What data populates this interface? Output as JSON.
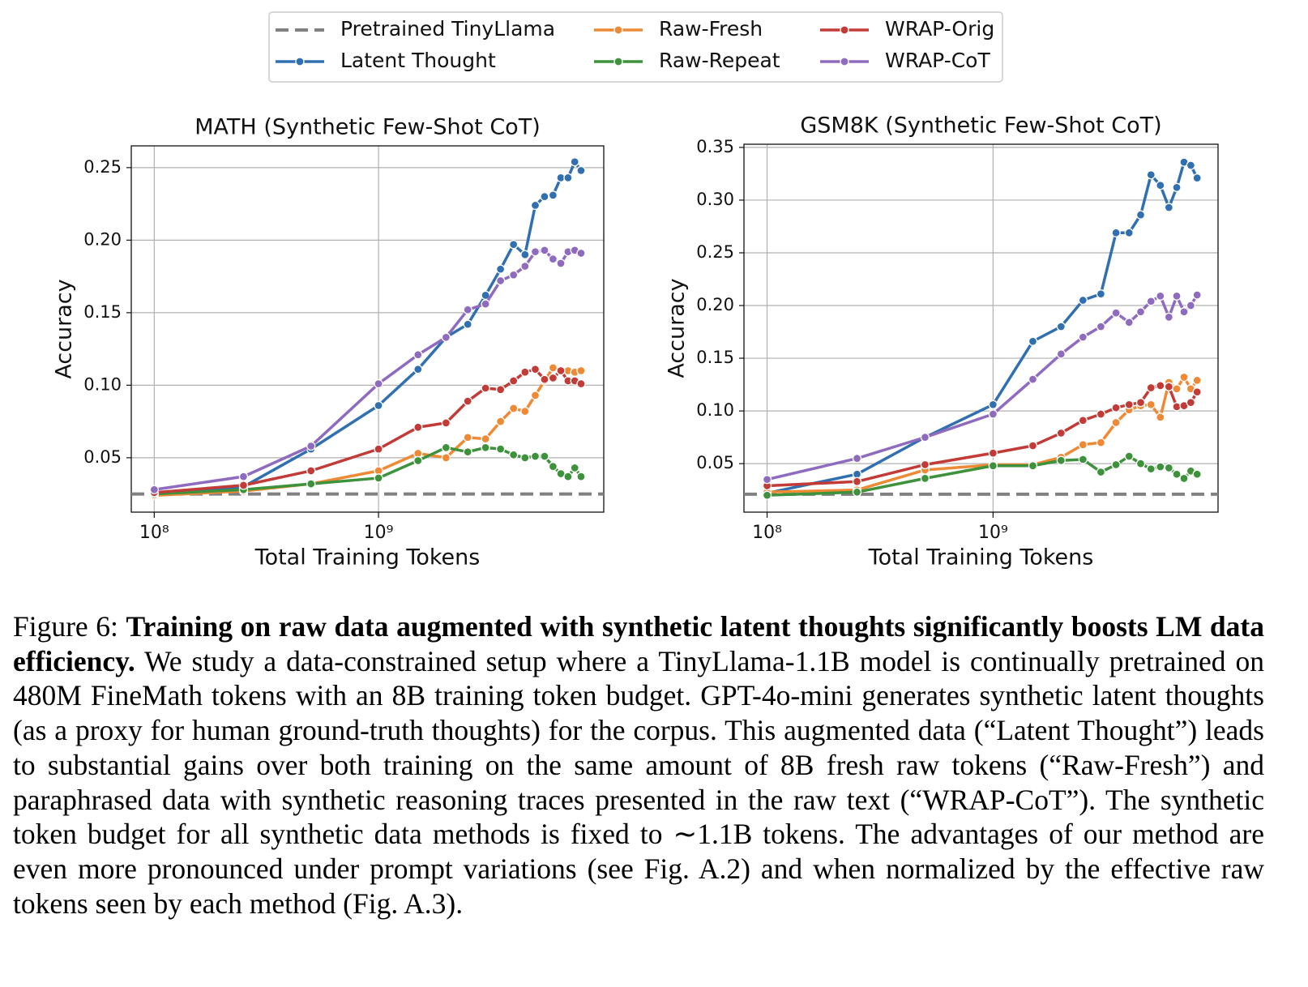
{
  "chart_data": [
    {
      "type": "line",
      "title": "MATH (Synthetic Few-Shot CoT)",
      "x_label": "Total Training Tokens",
      "y_label": "Accuracy",
      "xscale": "log",
      "grid": true,
      "x": [
        100000000,
        250000000,
        500000000,
        1000000000,
        1500000000,
        2000000000,
        2500000000,
        3000000000,
        3500000000,
        4000000000,
        4500000000,
        5000000000,
        5500000000,
        6000000000,
        6500000000,
        7000000000,
        7500000000,
        8000000000
      ],
      "xlim": [
        79000000,
        10100000000
      ],
      "xticks": [
        {
          "value": 100000000,
          "label": "10⁸"
        },
        {
          "value": 1000000000,
          "label": "10⁹"
        }
      ],
      "ylim": [
        0.0125,
        0.265
      ],
      "yticks": [
        0.05,
        {
          "value": 0.1,
          "label": "0.10"
        },
        0.15,
        {
          "value": 0.2,
          "label": "0.20"
        },
        0.25
      ],
      "baseline": {
        "name": "Pretrained TinyLlama",
        "value": 0.025,
        "color": "#808080",
        "dashed": true
      },
      "series": [
        {
          "name": "Latent Thought",
          "color": "#3170b0",
          "values": [
            0.025,
            0.03,
            0.056,
            0.086,
            0.111,
            0.133,
            0.142,
            0.162,
            0.18,
            0.197,
            0.19,
            0.224,
            0.23,
            0.231,
            0.243,
            0.243,
            0.254,
            0.248
          ]
        },
        {
          "name": "Raw-Fresh",
          "color": "#ee8a35",
          "values": [
            0.024,
            0.027,
            0.032,
            0.041,
            0.053,
            0.05,
            0.064,
            0.063,
            0.075,
            0.084,
            0.082,
            0.093,
            0.103,
            0.112,
            0.11,
            0.11,
            0.109,
            0.11
          ]
        },
        {
          "name": "Raw-Repeat",
          "color": "#3d923b",
          "values": [
            0.025,
            0.028,
            0.032,
            0.036,
            0.048,
            0.057,
            0.054,
            0.057,
            0.056,
            0.052,
            0.05,
            0.051,
            0.051,
            0.044,
            0.039,
            0.037,
            0.043,
            0.037
          ]
        },
        {
          "name": "WRAP-Orig",
          "color": "#c23b37",
          "values": [
            0.026,
            0.031,
            0.041,
            0.056,
            0.071,
            0.074,
            0.089,
            0.098,
            0.097,
            0.103,
            0.109,
            0.111,
            0.104,
            0.105,
            0.11,
            0.103,
            0.103,
            0.101
          ]
        },
        {
          "name": "WRAP-CoT",
          "color": "#8f6bbf",
          "values": [
            0.028,
            0.037,
            0.058,
            0.101,
            0.121,
            0.133,
            0.152,
            0.156,
            0.172,
            0.176,
            0.182,
            0.192,
            0.193,
            0.187,
            0.184,
            0.192,
            0.193,
            0.191
          ]
        }
      ]
    },
    {
      "type": "line",
      "title": "GSM8K (Synthetic Few-Shot CoT)",
      "x_label": "Total Training Tokens",
      "y_label": "Accuracy",
      "xscale": "log",
      "grid": true,
      "x": [
        100000000,
        250000000,
        500000000,
        1000000000,
        1500000000,
        2000000000,
        2500000000,
        3000000000,
        3500000000,
        4000000000,
        4500000000,
        5000000000,
        5500000000,
        6000000000,
        6500000000,
        7000000000,
        7500000000,
        8000000000
      ],
      "xlim": [
        79000000,
        9900000000
      ],
      "xticks": [
        {
          "value": 100000000,
          "label": "10⁸"
        },
        {
          "value": 1000000000,
          "label": "10⁹"
        }
      ],
      "ylim": [
        0.004,
        0.353
      ],
      "yticks": [
        0.05,
        {
          "value": 0.1,
          "label": "0.10"
        },
        0.15,
        {
          "value": 0.2,
          "label": "0.20"
        },
        0.25,
        {
          "value": 0.3,
          "label": "0.30"
        },
        0.35
      ],
      "baseline": {
        "name": "Pretrained TinyLlama",
        "value": 0.021,
        "color": "#808080",
        "dashed": true
      },
      "series": [
        {
          "name": "Latent Thought",
          "color": "#3170b0",
          "values": [
            0.022,
            0.04,
            0.075,
            0.106,
            0.166,
            0.18,
            0.205,
            0.211,
            0.269,
            0.269,
            0.286,
            0.324,
            0.314,
            0.293,
            0.312,
            0.336,
            0.333,
            0.321
          ]
        },
        {
          "name": "Raw-Fresh",
          "color": "#ee8a35",
          "values": [
            0.023,
            0.025,
            0.044,
            0.049,
            0.049,
            0.056,
            0.068,
            0.07,
            0.089,
            0.101,
            0.105,
            0.106,
            0.094,
            0.127,
            0.121,
            0.132,
            0.121,
            0.129
          ]
        },
        {
          "name": "Raw-Repeat",
          "color": "#3d923b",
          "values": [
            0.02,
            0.023,
            0.036,
            0.048,
            0.048,
            0.053,
            0.054,
            0.042,
            0.049,
            0.057,
            0.05,
            0.045,
            0.047,
            0.046,
            0.04,
            0.036,
            0.043,
            0.04
          ]
        },
        {
          "name": "WRAP-Orig",
          "color": "#c23b37",
          "values": [
            0.029,
            0.033,
            0.049,
            0.06,
            0.067,
            0.079,
            0.091,
            0.097,
            0.103,
            0.106,
            0.108,
            0.122,
            0.124,
            0.123,
            0.104,
            0.105,
            0.108,
            0.118
          ]
        },
        {
          "name": "WRAP-CoT",
          "color": "#8f6bbf",
          "values": [
            0.035,
            0.055,
            0.075,
            0.097,
            0.13,
            0.154,
            0.17,
            0.18,
            0.193,
            0.184,
            0.194,
            0.204,
            0.209,
            0.189,
            0.209,
            0.194,
            0.2,
            0.21
          ]
        }
      ]
    }
  ],
  "caption": {
    "label": "Figure 6:",
    "bold": "Training on raw data augmented with synthetic latent thoughts significantly boosts LM data efficiency.",
    "text": "We study a data-constrained setup where a TinyLlama-1.1B model is continually pretrained on 480M FineMath tokens with an 8B training token budget. GPT-4o-mini generates synthetic latent thoughts (as a proxy for human ground-truth thoughts) for the corpus. This augmented data (“Latent Thought”) leads to substantial gains over both training on the same amount of 8B fresh raw tokens (“Raw-Fresh”) and paraphrased data with synthetic reasoning traces presented in the raw text (“WRAP-CoT”). The synthetic token budget for all synthetic data methods is fixed to ∼1.1B tokens. The advantages of our method are even more pronounced under prompt variations (see Fig. A.2) and when normalized by the effective raw tokens seen by each method (Fig. A.3)."
  }
}
